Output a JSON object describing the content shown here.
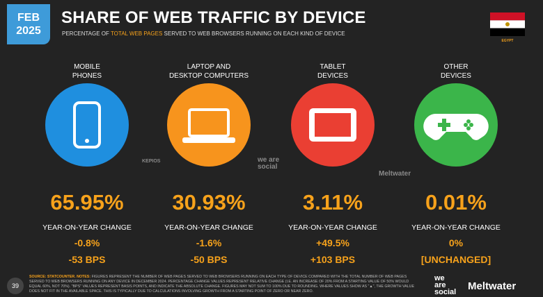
{
  "header": {
    "date": [
      "FEB",
      "2025"
    ],
    "title": "SHARE OF WEB TRAFFIC BY DEVICE",
    "subtitle": [
      "PERCENTAGE OF ",
      "TOTAL WEB PAGES",
      " SERVED TO WEB BROWSERS RUNNING ON EACH KIND OF DEVICE"
    ],
    "country": "EGYPT"
  },
  "devices": [
    {
      "label": [
        "MOBILE",
        "PHONES"
      ],
      "share": "65.95%",
      "change_label": "YEAR-ON-YEAR CHANGE",
      "change": "-0.8%",
      "bps": "-53 BPS"
    },
    {
      "label": [
        "LAPTOP AND",
        "DESKTOP COMPUTERS"
      ],
      "share": "30.93%",
      "change_label": "YEAR-ON-YEAR CHANGE",
      "change": "-1.6%",
      "bps": "-50 BPS"
    },
    {
      "label": [
        "TABLET",
        "DEVICES"
      ],
      "share": "3.11%",
      "change_label": "YEAR-ON-YEAR CHANGE",
      "change": "+49.5%",
      "bps": "+103 BPS"
    },
    {
      "label": [
        "OTHER",
        "DEVICES"
      ],
      "share": "0.01%",
      "change_label": "YEAR-ON-YEAR CHANGE",
      "change": "0%",
      "bps": "[UNCHANGED]"
    }
  ],
  "watermarks": [
    "KEPIOS",
    "we are social",
    "Meltwater"
  ],
  "footer": {
    "page": "39",
    "notes_source": "SOURCE: STATCOUNTER.",
    "notes_label": "NOTES:",
    "notes": "FIGURES REPRESENT THE NUMBER OF WEB PAGES SERVED TO WEB BROWSERS RUNNING ON EACH TYPE OF DEVICE COMPARED WITH THE TOTAL NUMBER OF WEB PAGES SERVED TO WEB BROWSERS RUNNING ON ANY DEVICE IN DECEMBER 2024. PERCENTAGE CHANGE VALUES REPRESENT RELATIVE CHANGE (I.E. AN INCREASE OF 20% FROM A STARTING VALUE OF 50% WOULD EQUAL 60%, NOT 70%). \"BPS\" VALUES REPRESENT BASIS POINTS, AND INDICATE THE ABSOLUTE CHANGE. FIGURES MAY NOT SUM TO 100% DUE TO ROUNDING. WHERE VALUES SHOW AS \"▲\", THE GROWTH VALUE DOES NOT FIT IN THE AVAILABLE SPACE. THIS IS TYPICALLY DUE TO CALCULATIONS INVOLVING GROWTH FROM A STARTING POINT OF ZERO OR NEAR ZERO.",
    "brand1": [
      "we",
      "are",
      "social"
    ],
    "brand2": "Meltwater"
  }
}
